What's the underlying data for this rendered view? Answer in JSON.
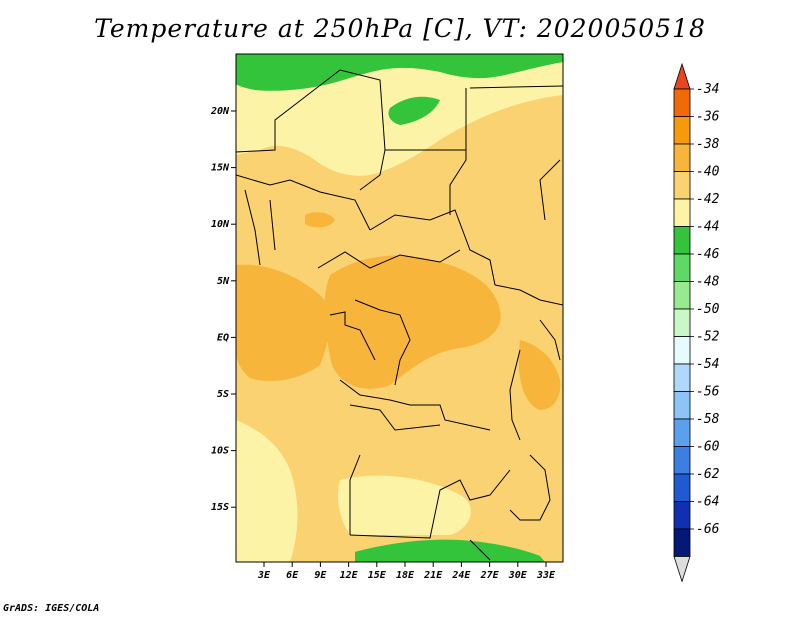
{
  "title": "Temperature at 250hPa [C], VT: 2020050518",
  "credit": "GrADS: IGES/COLA",
  "map": {
    "lon_ticks": [
      "3E",
      "6E",
      "9E",
      "12E",
      "15E",
      "18E",
      "21E",
      "24E",
      "27E",
      "30E",
      "33E"
    ],
    "lat_ticks": [
      "20N",
      "15N",
      "10N",
      "5N",
      "EQ",
      "5S",
      "10S",
      "15S"
    ]
  },
  "colorbar": {
    "levels": [
      "-34",
      "-36",
      "-38",
      "-40",
      "-42",
      "-44",
      "-46",
      "-48",
      "-50",
      "-52",
      "-54",
      "-56",
      "-58",
      "-60",
      "-62",
      "-64",
      "-66"
    ],
    "colors": [
      "#e8461f",
      "#f06a0a",
      "#f59a0c",
      "#f8b53c",
      "#fad271",
      "#fdf3a6",
      "#33c43c",
      "#5fd866",
      "#98ea91",
      "#c9f7c5",
      "#e6fbfe",
      "#b0d8fb",
      "#8cc4f7",
      "#5aa0ec",
      "#3c7fe0",
      "#1f5ad0",
      "#1030b0",
      "#061875",
      "#dddddd"
    ]
  },
  "fields": {
    "background": "#fad271",
    "warm_patch": "#f8b53c",
    "cool_band": "#fdf3a6",
    "cold_band": "#33c43c"
  }
}
